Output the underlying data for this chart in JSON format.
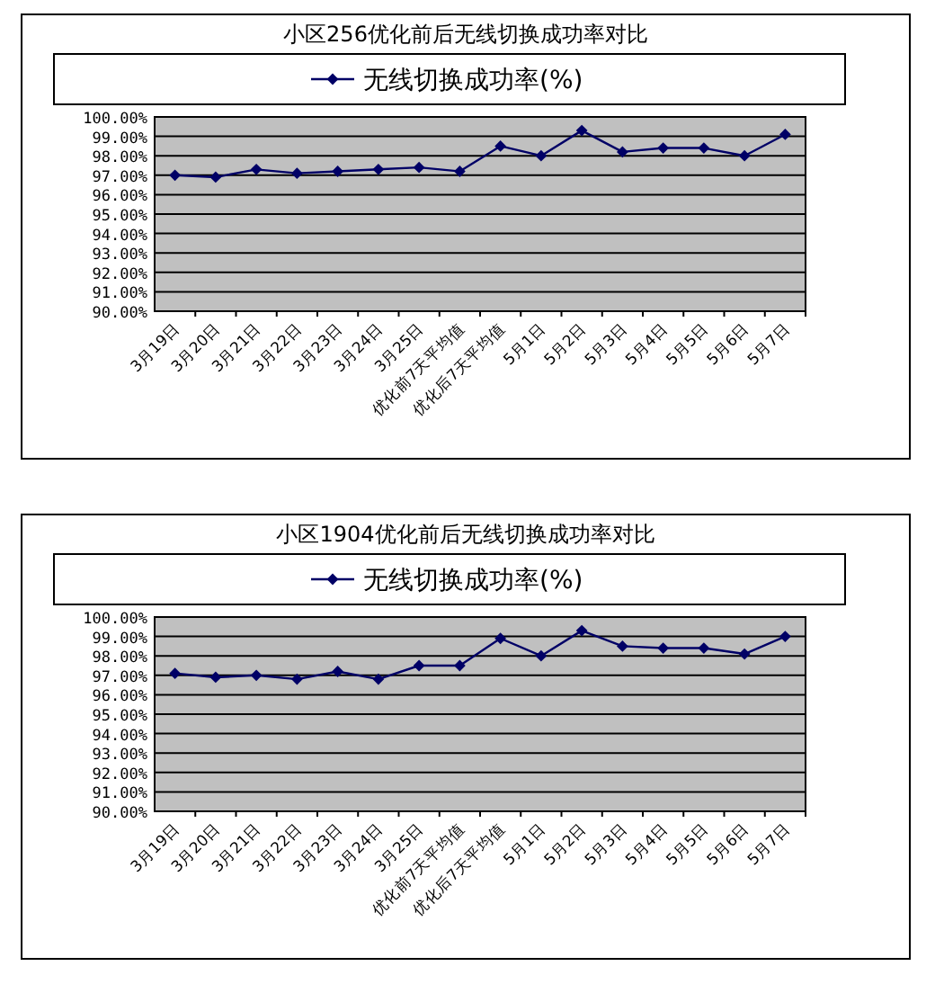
{
  "chart_data": [
    {
      "type": "line",
      "title": "小区256优化前后无线切换成功率对比",
      "categories": [
        "3月19日",
        "3月20日",
        "3月21日",
        "3月22日",
        "3月23日",
        "3月24日",
        "3月25日",
        "优化前7天平均值",
        "优化后7天平均值",
        "5月1日",
        "5月2日",
        "5月3日",
        "5月4日",
        "5月5日",
        "5月6日",
        "5月7日"
      ],
      "series": [
        {
          "name": "无线切换成功率(%)",
          "color": "#000066",
          "values": [
            97.0,
            96.9,
            97.3,
            97.1,
            97.2,
            97.3,
            97.4,
            97.2,
            98.5,
            98.0,
            99.3,
            98.2,
            98.4,
            98.4,
            98.0,
            99.1
          ]
        }
      ],
      "ylim": [
        90,
        100
      ],
      "yticks": [
        {
          "value": 90,
          "label": "90.00%"
        },
        {
          "value": 91,
          "label": "91.00%"
        },
        {
          "value": 92,
          "label": "92.00%"
        },
        {
          "value": 93,
          "label": "93.00%"
        },
        {
          "value": 94,
          "label": "94.00%"
        },
        {
          "value": 95,
          "label": "95.00%"
        },
        {
          "value": 96,
          "label": "96.00%"
        },
        {
          "value": 97,
          "label": "97.00%"
        },
        {
          "value": 98,
          "label": "98.00%"
        },
        {
          "value": 99,
          "label": "99.00%"
        },
        {
          "value": 100,
          "label": "100.00%"
        }
      ],
      "grid": "y",
      "legend": "top",
      "marker": "diamond",
      "line_style": "solid"
    },
    {
      "type": "line",
      "title": "小区1904优化前后无线切换成功率对比",
      "categories": [
        "3月19日",
        "3月20日",
        "3月21日",
        "3月22日",
        "3月23日",
        "3月24日",
        "3月25日",
        "优化前7天平均值",
        "优化后7天平均值",
        "5月1日",
        "5月2日",
        "5月3日",
        "5月4日",
        "5月5日",
        "5月6日",
        "5月7日"
      ],
      "series": [
        {
          "name": "无线切换成功率(%)",
          "color": "#000066",
          "values": [
            97.1,
            96.9,
            97.0,
            96.8,
            97.2,
            96.8,
            97.5,
            97.5,
            98.9,
            98.0,
            99.3,
            98.5,
            98.4,
            98.4,
            98.1,
            99.0
          ]
        }
      ],
      "ylim": [
        90,
        100
      ],
      "yticks": [
        {
          "value": 90,
          "label": "90.00%"
        },
        {
          "value": 91,
          "label": "91.00%"
        },
        {
          "value": 92,
          "label": "92.00%"
        },
        {
          "value": 93,
          "label": "93.00%"
        },
        {
          "value": 94,
          "label": "94.00%"
        },
        {
          "value": 95,
          "label": "95.00%"
        },
        {
          "value": 96,
          "label": "96.00%"
        },
        {
          "value": 97,
          "label": "97.00%"
        },
        {
          "value": 98,
          "label": "98.00%"
        },
        {
          "value": 99,
          "label": "99.00%"
        },
        {
          "value": 100,
          "label": "100.00%"
        }
      ],
      "grid": "y",
      "legend": "top",
      "marker": "diamond",
      "line_style": "solid"
    }
  ]
}
